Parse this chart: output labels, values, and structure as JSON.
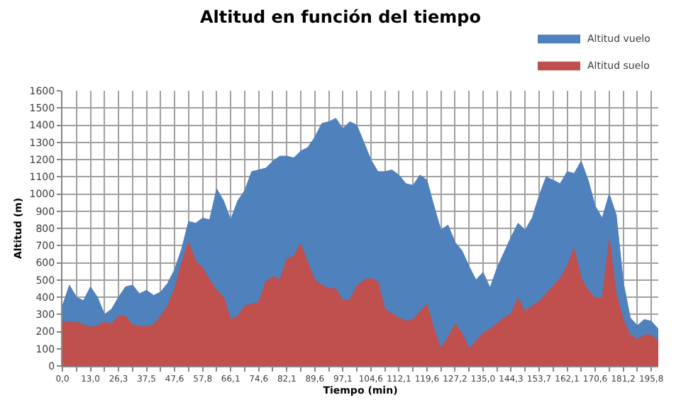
{
  "chart_data": {
    "type": "area",
    "title": "Altitud en función del tiempo",
    "xlabel": "Tiempo (min)",
    "ylabel": "Altitud (m)",
    "categories": [
      "0,0",
      null,
      null,
      null,
      "13,0",
      null,
      null,
      null,
      "26,3",
      null,
      null,
      null,
      "37,5",
      null,
      null,
      null,
      "47,6",
      null,
      null,
      null,
      "57,8",
      null,
      null,
      null,
      "66,1",
      null,
      null,
      null,
      "74,6",
      null,
      null,
      null,
      "82,1",
      null,
      null,
      null,
      "89,6",
      null,
      null,
      null,
      "97,1",
      null,
      null,
      null,
      "104,6",
      null,
      null,
      null,
      "112,1",
      null,
      null,
      null,
      "119,6",
      null,
      null,
      null,
      "127,2",
      null,
      null,
      null,
      "135,0",
      null,
      null,
      null,
      "144,3",
      null,
      null,
      null,
      "153,7",
      null,
      null,
      null,
      "162,1",
      null,
      null,
      null,
      "170,6",
      null,
      null,
      null,
      "181,2",
      null,
      null,
      null,
      "195,8",
      null
    ],
    "series": [
      {
        "name": "Altitud vuelo",
        "color": "#4f81bd",
        "values": [
          350,
          470,
          400,
          380,
          460,
          400,
          300,
          330,
          400,
          460,
          470,
          420,
          440,
          410,
          430,
          480,
          560,
          680,
          840,
          830,
          860,
          850,
          1030,
          960,
          850,
          960,
          1020,
          1130,
          1140,
          1150,
          1190,
          1220,
          1220,
          1210,
          1250,
          1270,
          1330,
          1410,
          1420,
          1440,
          1380,
          1420,
          1400,
          1300,
          1200,
          1130,
          1130,
          1140,
          1110,
          1060,
          1050,
          1110,
          1080,
          930,
          790,
          820,
          720,
          670,
          580,
          500,
          545,
          455,
          570,
          660,
          750,
          830,
          790,
          860,
          990,
          1100,
          1080,
          1060,
          1130,
          1120,
          1190,
          1080,
          930,
          860,
          1000,
          880,
          490,
          280,
          235,
          270,
          260,
          215
        ]
      },
      {
        "name": "Altitud suelo",
        "color": "#c0504d",
        "values": [
          255,
          255,
          255,
          240,
          225,
          235,
          255,
          245,
          290,
          290,
          240,
          230,
          230,
          240,
          290,
          350,
          450,
          600,
          720,
          610,
          570,
          500,
          440,
          400,
          270,
          290,
          350,
          360,
          370,
          490,
          520,
          500,
          620,
          640,
          710,
          600,
          500,
          470,
          450,
          450,
          380,
          385,
          465,
          500,
          510,
          490,
          330,
          305,
          280,
          260,
          270,
          315,
          360,
          215,
          100,
          165,
          245,
          190,
          100,
          145,
          190,
          215,
          245,
          280,
          305,
          395,
          315,
          350,
          375,
          420,
          465,
          510,
          580,
          685,
          510,
          440,
          395,
          395,
          740,
          420,
          270,
          180,
          155,
          180,
          180,
          145
        ]
      }
    ],
    "ylim": [
      0,
      1600
    ],
    "yticks": [
      0,
      100,
      200,
      300,
      400,
      500,
      600,
      700,
      800,
      900,
      1000,
      1100,
      1200,
      1300,
      1400,
      1500,
      1600
    ],
    "grid": true,
    "legend": "top right"
  }
}
